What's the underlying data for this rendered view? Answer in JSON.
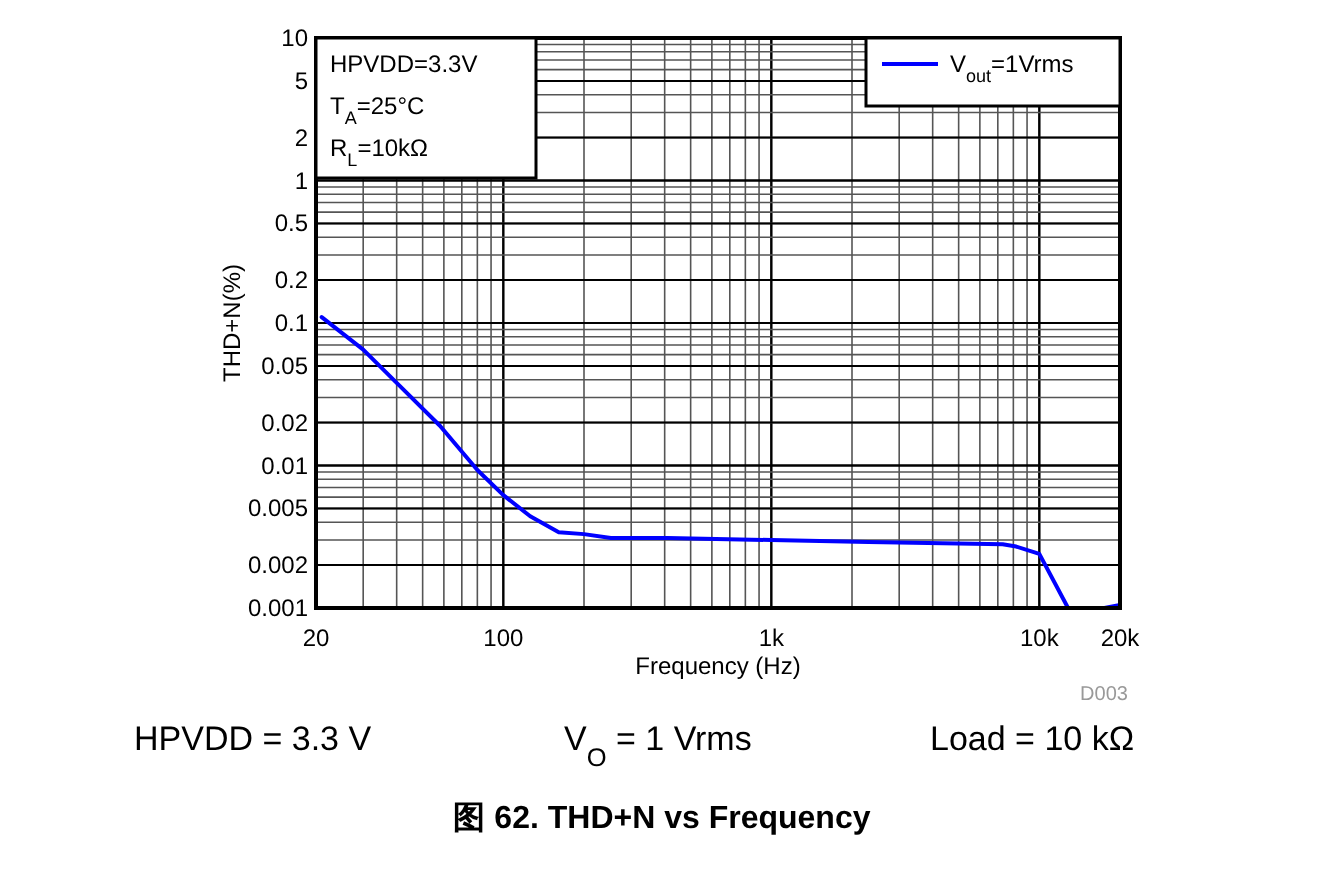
{
  "chart_data": {
    "type": "line",
    "title": "图 62. THD+N vs Frequency",
    "xlabel": "Frequency (Hz)",
    "ylabel": "THD+N(%)",
    "annotations": [
      "HPVDD=3.3V",
      "T$_{A}$=25°C",
      "R$_{L}$=10kΩ",
      "D003",
      "HPVDD = 3.3 V",
      "V$_{O}$ = 1 Vrms",
      "Load = 10 kΩ"
    ],
    "log": "xy",
    "grid": true,
    "legend": "top right",
    "marker": "none",
    "line_style": "solid",
    "xlim": [
      20,
      20000
    ],
    "xticks": [
      20,
      100,
      {
        "value": 1000,
        "label": "1k"
      },
      {
        "value": 10000,
        "label": "10k"
      },
      {
        "value": 20000,
        "label": "20k"
      }
    ],
    "ylim": [
      0.001,
      10
    ],
    "yticks": [
      0.001,
      0.002,
      0.005,
      0.01,
      0.02,
      0.05,
      0.1,
      0.2,
      0.5,
      1,
      2,
      5,
      10
    ],
    "series": [
      {
        "name": "V$_{out}$=1Vrms",
        "color": "#0000ff",
        "x": [
          21,
          30,
          40,
          58,
          80,
          100,
          126,
          161,
          200,
          252,
          411,
          1000,
          2300,
          7300,
          8200,
          10000,
          12800,
          17500,
          20000
        ],
        "values": [
          0.11,
          0.065,
          0.038,
          0.019,
          0.0093,
          0.0062,
          0.0044,
          0.0034,
          0.0033,
          0.0031,
          0.0031,
          0.003,
          0.0029,
          0.0028,
          0.0027,
          0.0024,
          0.001,
          0.001,
          0.00105
        ]
      }
    ]
  }
}
